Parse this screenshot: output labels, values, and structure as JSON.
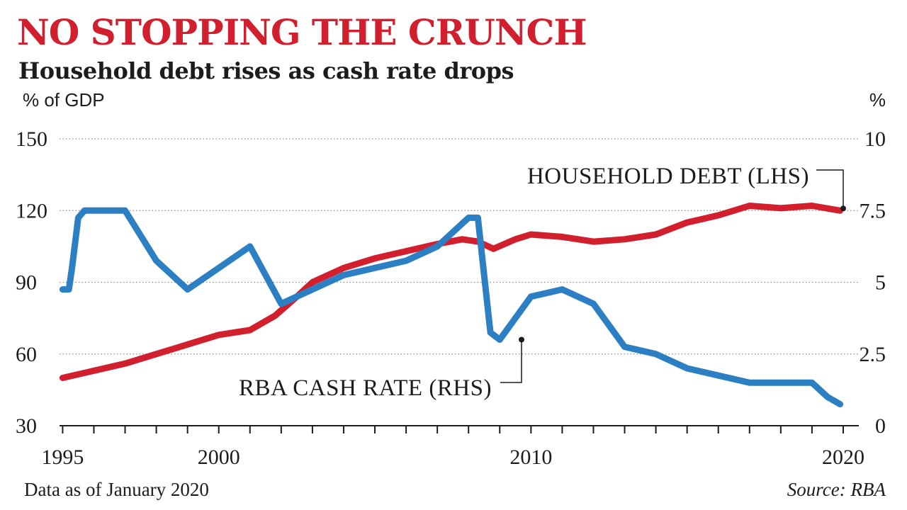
{
  "header": {
    "title": "NO STOPPING THE CRUNCH",
    "subtitle": "Household debt rises as cash rate drops"
  },
  "footer": {
    "note": "Data as of January 2020",
    "source": "Source: RBA"
  },
  "colors": {
    "debt": "#d11f2d",
    "cash_rate": "#2c7fc2",
    "gridline": "#8a8a8a",
    "text": "#1c1c1c"
  },
  "chart_data": {
    "type": "line",
    "left_axis_label": "% of GDP",
    "right_axis_label": "%",
    "x_range": [
      1994.9,
      2020.5
    ],
    "x_tick_labels": [
      {
        "x": 1995,
        "label": "1995"
      },
      {
        "x": 2000,
        "label": "2000"
      },
      {
        "x": 2010,
        "label": "2010"
      },
      {
        "x": 2020,
        "label": "2020"
      }
    ],
    "left_axis": {
      "ylim": [
        30,
        150
      ],
      "ticks": [
        "30",
        "60",
        "90",
        "120",
        "150"
      ]
    },
    "right_axis": {
      "ylim": [
        0,
        10
      ],
      "ticks": [
        "0",
        "2.5",
        "5",
        "7.5",
        "10"
      ]
    },
    "grid": true,
    "series": [
      {
        "name": "HOUSEHOLD DEBT (LHS)",
        "axis": "left",
        "x": [
          1995.0,
          1996.0,
          1997.0,
          1998.0,
          1999.0,
          2000.0,
          2001.0,
          2001.8,
          2002.5,
          2003.0,
          2004.0,
          2005.0,
          2006.0,
          2007.0,
          2007.8,
          2008.3,
          2008.8,
          2009.5,
          2010.0,
          2011.0,
          2012.0,
          2013.0,
          2014.0,
          2015.0,
          2016.0,
          2017.0,
          2018.0,
          2019.0,
          2019.9
        ],
        "values": [
          50,
          53,
          56,
          60,
          64,
          68,
          70,
          76,
          84,
          90,
          96,
          100,
          103,
          106,
          108,
          107,
          104,
          108,
          110,
          109,
          107,
          108,
          110,
          115,
          118,
          122,
          121,
          122,
          120
        ]
      },
      {
        "name": "RBA CASH RATE (RHS)",
        "axis": "right",
        "x": [
          1995.0,
          1995.2,
          1995.3,
          1995.5,
          1995.7,
          1996.0,
          1997.0,
          1998.0,
          1999.0,
          2000.0,
          2001.0,
          2002.0,
          2003.0,
          2004.0,
          2005.0,
          2006.0,
          2007.0,
          2008.0,
          2008.3,
          2008.7,
          2009.0,
          2009.5,
          2010.0,
          2011.0,
          2012.0,
          2013.0,
          2014.0,
          2015.0,
          2016.0,
          2017.0,
          2018.0,
          2019.0,
          2019.5,
          2019.9
        ],
        "values": [
          4.75,
          4.75,
          5.5,
          7.25,
          7.5,
          7.5,
          7.5,
          5.75,
          4.75,
          5.5,
          6.25,
          4.25,
          4.75,
          5.25,
          5.5,
          5.75,
          6.25,
          7.25,
          7.25,
          3.25,
          3.0,
          3.75,
          4.5,
          4.75,
          4.25,
          2.75,
          2.5,
          2.0,
          1.75,
          1.5,
          1.5,
          1.5,
          1.0,
          0.75
        ]
      }
    ],
    "annotations": [
      {
        "label": "HOUSEHOLD DEBT (LHS)",
        "series": 0
      },
      {
        "label": "RBA CASH RATE (RHS)",
        "series": 1
      }
    ]
  }
}
